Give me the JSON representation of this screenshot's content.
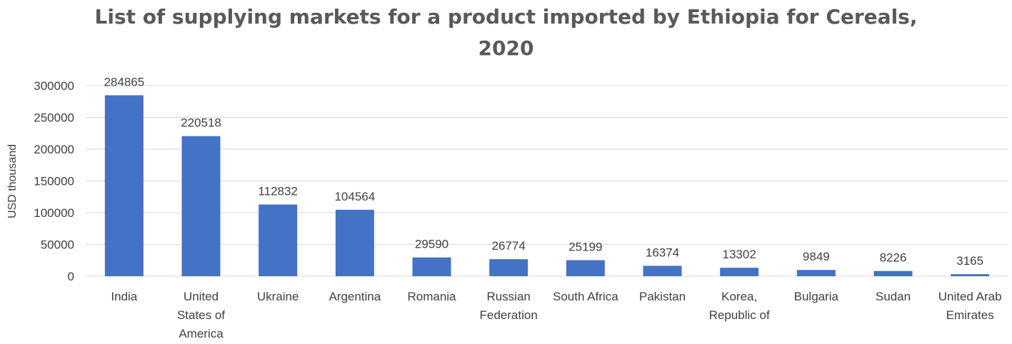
{
  "chart_data": {
    "type": "bar",
    "title": "List of supplying markets for a product imported by Ethiopia for Cereals, 2020",
    "title_lines": [
      "List of supplying markets for a product imported by Ethiopia for Cereals,",
      "2020"
    ],
    "xlabel": "",
    "ylabel": "USD thousand",
    "ylim": [
      0,
      300000
    ],
    "yticks": [
      "0",
      "50000",
      "100000",
      "150000",
      "200000",
      "250000",
      "300000"
    ],
    "grid": true,
    "bar_color": "#4472C4",
    "categories": [
      "India",
      "United States of America",
      "Ukraine",
      "Argentina",
      "Romania",
      "Russian Federation",
      "South Africa",
      "Pakistan",
      "Korea, Republic of",
      "Bulgaria",
      "Sudan",
      "United Arab Emirates"
    ],
    "category_lines": [
      [
        "India"
      ],
      [
        "United",
        "States of",
        "America"
      ],
      [
        "Ukraine"
      ],
      [
        "Argentina"
      ],
      [
        "Romania"
      ],
      [
        "Russian",
        "Federation"
      ],
      [
        "South Africa"
      ],
      [
        "Pakistan"
      ],
      [
        "Korea,",
        "Republic of"
      ],
      [
        "Bulgaria"
      ],
      [
        "Sudan"
      ],
      [
        "United Arab",
        "Emirates"
      ]
    ],
    "values": [
      284865,
      220518,
      112832,
      104564,
      29590,
      26774,
      25199,
      16374,
      13302,
      9849,
      8226,
      3165
    ]
  }
}
